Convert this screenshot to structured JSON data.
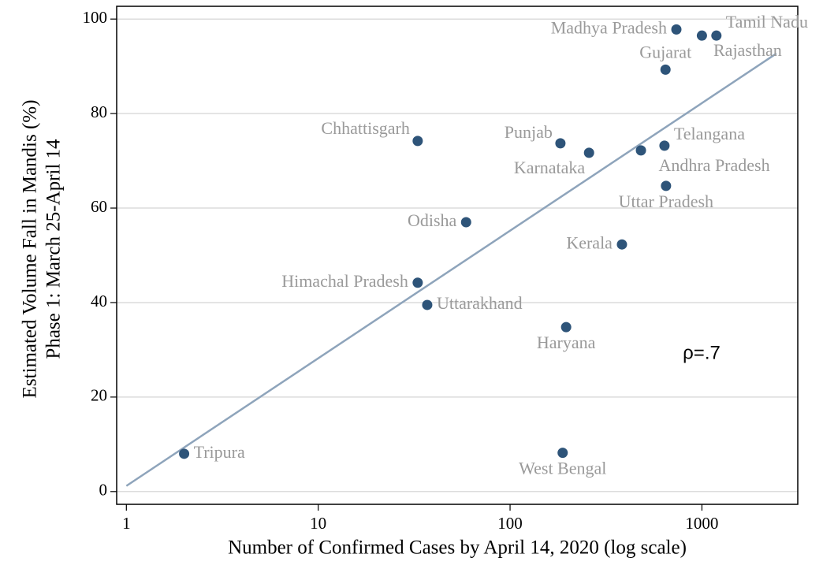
{
  "chart_data": {
    "type": "scatter",
    "x_label": "Number of Confirmed Cases by April 14, 2020 (log scale)",
    "y_label": [
      "Estimated Volume Fall in Mandis (%)",
      "Phase 1: March 25-April 14"
    ],
    "annotation": "ρ=.7",
    "categories": [
      "Tripura",
      "West Bengal",
      "Himachal Pradesh",
      "Uttarakhand",
      "Odisha",
      "Chhattisgarh",
      "Punjab",
      "Karnataka",
      "Haryana",
      "Kerala",
      "Andhra Pradesh",
      "Telangana",
      "Uttar Pradesh",
      "Gujarat",
      "Madhya Pradesh",
      "Rajasthan",
      "Tamil Nadu"
    ],
    "x": [
      2,
      188,
      33,
      37,
      59,
      33,
      183,
      258,
      196,
      383,
      481,
      638,
      650,
      646,
      736,
      1000,
      1190
    ],
    "values": [
      8.0,
      8.2,
      44.2,
      39.5,
      57.0,
      74.2,
      73.7,
      71.7,
      34.8,
      52.3,
      72.2,
      73.2,
      64.7,
      89.3,
      97.8,
      96.5,
      96.5
    ],
    "color": "#2e5479",
    "label_color": "#9a9a9a",
    "fit_line": {
      "x": [
        1,
        2444
      ],
      "y": [
        1.2,
        92.7
      ],
      "color": "#8ea4bb"
    },
    "xscale": "log",
    "xlim": [
      0.89,
      3160
    ],
    "xticks": [
      1,
      10,
      100,
      1000
    ],
    "ylim": [
      -2.7,
      102.7
    ],
    "yticks": [
      0,
      20,
      40,
      60,
      80,
      100
    ],
    "grid": true
  }
}
